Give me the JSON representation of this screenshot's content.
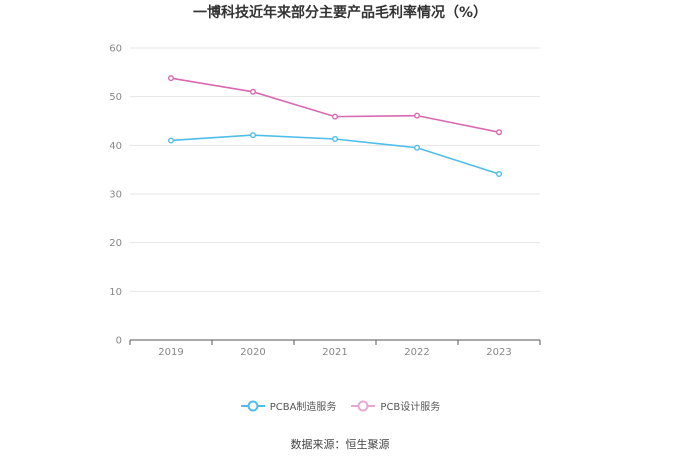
{
  "chart_data": {
    "type": "line",
    "title": "一博科技近年来部分主要产品毛利率情况（%）",
    "categories": [
      "2019",
      "2020",
      "2021",
      "2022",
      "2023"
    ],
    "series": [
      {
        "name": "PCBA制造服务",
        "color": "#4fbde9",
        "values": [
          41.0,
          42.1,
          41.3,
          39.5,
          34.1
        ]
      },
      {
        "name": "PCB设计服务",
        "color": "#d86ab2",
        "values": [
          53.8,
          51.0,
          45.9,
          46.1,
          42.7
        ]
      }
    ],
    "ylim": [
      0,
      60
    ],
    "yticks": [
      0,
      10,
      20,
      30,
      40,
      50,
      60
    ],
    "grid": true,
    "legend": "bottom-center"
  },
  "source": "数据来源：恒生聚源"
}
